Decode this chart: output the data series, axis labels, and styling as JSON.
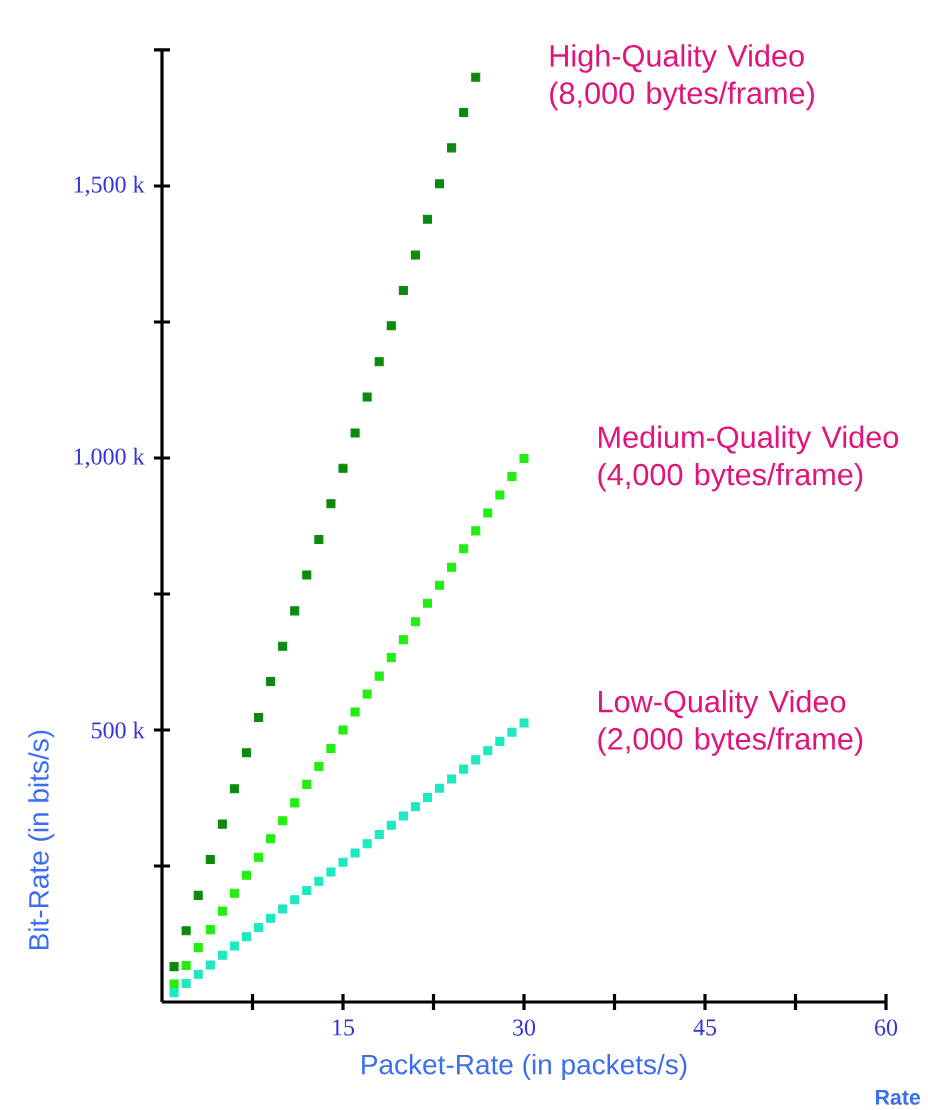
{
  "chart_data": {
    "type": "scatter",
    "xlabel": "Packet-Rate (in packets/s)",
    "ylabel": "Bit-Rate (in bits/s)",
    "xlim": [
      0,
      60
    ],
    "ylim": [
      0,
      1750000
    ],
    "xticks": [
      {
        "value": 7.5,
        "label": null
      },
      15,
      {
        "value": 22.5,
        "label": null
      },
      30,
      {
        "value": 37.5,
        "label": null
      },
      45,
      {
        "value": 52.5,
        "label": null
      },
      60
    ],
    "yticks": [
      {
        "value": 250000,
        "label": null
      },
      {
        "value": 500000,
        "label": "500 k"
      },
      {
        "value": 750000,
        "label": null
      },
      {
        "value": 1000000,
        "label": "1,000 k"
      },
      {
        "value": 1250000,
        "label": null
      },
      {
        "value": 1500000,
        "label": "1,500 k"
      },
      {
        "value": 1750000,
        "label": null
      }
    ],
    "marker": "square",
    "legend": false,
    "grid": false,
    "annotations": [
      "Rate"
    ],
    "series": [
      {
        "name": "High-Quality Video (8,000 bytes/frame)",
        "color": "#0b8a0b",
        "x": [
          1,
          2,
          3,
          4,
          5,
          6,
          7,
          8,
          9,
          10,
          11,
          12,
          13,
          14,
          15,
          16,
          17,
          18,
          19,
          20,
          21,
          22,
          23,
          24,
          25,
          26
        ],
        "values": [
          65000,
          131000,
          196000,
          262000,
          327000,
          392000,
          458000,
          523000,
          589000,
          654000,
          719000,
          785000,
          850000,
          916000,
          981000,
          1046000,
          1112000,
          1177000,
          1243000,
          1308000,
          1373000,
          1439000,
          1504000,
          1570000,
          1635000,
          1700000
        ]
      },
      {
        "name": "Medium-Quality Video (4,000 bytes/frame)",
        "color": "#22ee11",
        "x": [
          1,
          2,
          3,
          4,
          5,
          6,
          7,
          8,
          9,
          10,
          11,
          12,
          13,
          14,
          15,
          16,
          17,
          18,
          19,
          20,
          21,
          22,
          23,
          24,
          25,
          26,
          27,
          28,
          29,
          30
        ],
        "values": [
          33000,
          67000,
          100000,
          133000,
          167000,
          200000,
          233000,
          266000,
          300000,
          333000,
          366000,
          400000,
          433000,
          466000,
          500000,
          533000,
          566000,
          599000,
          633000,
          666000,
          699000,
          733000,
          766000,
          799000,
          833000,
          866000,
          899000,
          932000,
          966000,
          999000
        ]
      },
      {
        "name": "Low-Quality Video (2,000 bytes/frame)",
        "color": "#1de8c0",
        "x": [
          1,
          2,
          3,
          4,
          5,
          6,
          7,
          8,
          9,
          10,
          11,
          12,
          13,
          14,
          15,
          16,
          17,
          18,
          19,
          20,
          21,
          22,
          23,
          24,
          25,
          26,
          27,
          28,
          29,
          30
        ],
        "values": [
          17000,
          34000,
          51000,
          68000,
          86000,
          103000,
          120000,
          137000,
          154000,
          171000,
          188000,
          205000,
          222000,
          239000,
          257000,
          274000,
          291000,
          308000,
          325000,
          342000,
          359000,
          376000,
          393000,
          410000,
          428000,
          445000,
          462000,
          479000,
          496000,
          513000
        ]
      }
    ]
  }
}
